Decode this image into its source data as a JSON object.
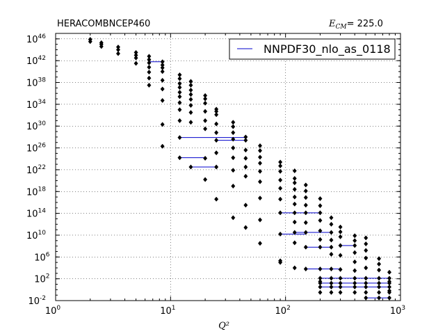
{
  "chart_data": {
    "type": "scatter",
    "title_left": "HERACOMBNCEP460",
    "title_right_label": "E_CM",
    "title_right_value": "= 225.0",
    "xlabel": "Q²",
    "ylabel": "",
    "x_scale": "log",
    "y_scale": "log",
    "xlim": [
      1,
      1000
    ],
    "ylim_exp": [
      -2,
      47
    ],
    "x_tick_labels": [
      {
        "value": 1,
        "base": "10",
        "exp": "0"
      },
      {
        "value": 10,
        "base": "10",
        "exp": "1"
      },
      {
        "value": 100,
        "base": "10",
        "exp": "2"
      },
      {
        "value": 1000,
        "base": "10",
        "exp": "3"
      }
    ],
    "y_tick_labels": [
      {
        "exp": -2,
        "base": "10",
        "label": "-2"
      },
      {
        "exp": 2,
        "base": "10",
        "label": "2"
      },
      {
        "exp": 6,
        "base": "10",
        "label": "6"
      },
      {
        "exp": 10,
        "base": "10",
        "label": "10"
      },
      {
        "exp": 14,
        "base": "10",
        "label": "14"
      },
      {
        "exp": 18,
        "base": "10",
        "label": "18"
      },
      {
        "exp": 22,
        "base": "10",
        "label": "22"
      },
      {
        "exp": 26,
        "base": "10",
        "label": "26"
      },
      {
        "exp": 30,
        "base": "10",
        "label": "30"
      },
      {
        "exp": 34,
        "base": "10",
        "label": "34"
      },
      {
        "exp": 38,
        "base": "10",
        "label": "38"
      },
      {
        "exp": 42,
        "base": "10",
        "label": "42"
      },
      {
        "exp": 46,
        "base": "10",
        "label": "46"
      }
    ],
    "grid": true,
    "legend_position": "top-right",
    "series": [
      {
        "name": "NNPDF30_nlo_as_0118",
        "color": "#0000cc",
        "lines": [
          {
            "x": [
              6.5,
              8.5
            ],
            "y_exp": 41.8
          },
          {
            "x": [
              12,
              45
            ],
            "y_exp": 27.9
          },
          {
            "x": [
              25,
              45
            ],
            "y_exp": 27.4
          },
          {
            "x": [
              12,
              20
            ],
            "y_exp": 24.2
          },
          {
            "x": [
              15,
              25
            ],
            "y_exp": 22.5
          },
          {
            "x": [
              90,
              200
            ],
            "y_exp": 14.1
          },
          {
            "x": [
              90,
              150
            ],
            "y_exp": 10.2
          },
          {
            "x": [
              120,
              250
            ],
            "y_exp": 10.5
          },
          {
            "x": [
              150,
              250
            ],
            "y_exp": 7.8
          },
          {
            "x": [
              300,
              400
            ],
            "y_exp": 8.1
          },
          {
            "x": [
              150,
              300
            ],
            "y_exp": 3.8
          },
          {
            "x": [
              200,
              800
            ],
            "y_exp": 2.1
          },
          {
            "x": [
              200,
              800
            ],
            "y_exp": 1.2
          },
          {
            "x": [
              200,
              800
            ],
            "y_exp": 0.5
          },
          {
            "x": [
              500,
              800
            ],
            "y_exp": -1.5
          }
        ]
      },
      {
        "name": "",
        "color": "#000000",
        "columns": [
          {
            "x": 2,
            "y_exp": [
              45.9,
              45.5
            ]
          },
          {
            "x": 2.5,
            "y_exp": [
              45.3,
              45.0,
              44.6
            ]
          },
          {
            "x": 3.5,
            "y_exp": [
              44.5,
              44.0,
              43.3
            ]
          },
          {
            "x": 5,
            "y_exp": [
              43.5,
              43.0,
              42.5,
              41.5
            ]
          },
          {
            "x": 6.5,
            "y_exp": [
              42.8,
              42.2,
              41.6,
              40.8,
              39.9,
              38.8,
              37.5
            ]
          },
          {
            "x": 8.5,
            "y_exp": [
              41.8,
              41.2,
              40.7,
              40.0,
              38.4,
              36.8,
              34.7,
              30.3,
              26.3
            ]
          },
          {
            "x": 12,
            "y_exp": [
              39.4,
              38.7,
              37.8,
              37.1,
              36.2,
              35.4,
              34.3,
              33.0,
              31.0,
              27.9,
              24.2
            ]
          },
          {
            "x": 15,
            "y_exp": [
              38.2,
              37.5,
              36.6,
              35.8,
              34.9,
              33.8,
              32.5,
              30.7,
              22.5
            ]
          },
          {
            "x": 20,
            "y_exp": [
              35.6,
              35.0,
              34.2,
              32.7,
              31.0,
              29.5,
              24.1,
              20.2
            ]
          },
          {
            "x": 25,
            "y_exp": [
              33.1,
              32.7,
              32.1,
              30.4,
              28.8,
              27.4,
              25.1,
              22.5,
              16.6
            ]
          },
          {
            "x": 35,
            "y_exp": [
              30.7,
              29.9,
              28.8,
              27.6,
              26.0,
              24.2,
              21.9,
              19.0,
              13.2
            ]
          },
          {
            "x": 45,
            "y_exp": [
              28.0,
              27.4,
              25.6,
              24.1,
              22.5,
              20.8,
              15.5,
              11.4
            ]
          },
          {
            "x": 60,
            "y_exp": [
              26.4,
              25.5,
              24.3,
              23.2,
              21.7,
              19.8,
              16.8,
              12.8,
              8.5
            ]
          },
          {
            "x": 90,
            "y_exp": [
              23.4,
              22.7,
              21.7,
              20.1,
              18.6,
              16.6,
              14.1,
              10.2,
              5.3,
              5.0
            ]
          },
          {
            "x": 120,
            "y_exp": [
              21.8,
              20.4,
              19.6,
              18.4,
              17.0,
              15.7,
              14.1,
              12.4,
              10.5,
              8.6,
              4.0
            ]
          },
          {
            "x": 150,
            "y_exp": [
              19.2,
              18.1,
              16.9,
              15.5,
              14.1,
              12.3,
              10.5,
              7.8,
              3.8
            ]
          },
          {
            "x": 200,
            "y_exp": [
              16.7,
              15.4,
              14.1,
              12.7,
              10.8,
              9.2,
              7.8,
              3.8,
              2.1,
              1.5,
              1.2,
              0.5,
              -0.5
            ]
          },
          {
            "x": 250,
            "y_exp": [
              13.2,
              12.0,
              10.5,
              9.1,
              7.8,
              6.5,
              3.8,
              2.1,
              1.2,
              0.5,
              -0.5
            ]
          },
          {
            "x": 300,
            "y_exp": [
              11.5,
              10.6,
              9.7,
              8.1,
              6.3,
              3.7,
              2.1,
              1.2,
              0.5,
              -0.5
            ]
          },
          {
            "x": 400,
            "y_exp": [
              9.9,
              9.0,
              8.1,
              6.8,
              5.1,
              3.5,
              2.1,
              1.2,
              0.5,
              -0.5
            ]
          },
          {
            "x": 500,
            "y_exp": [
              9.5,
              8.4,
              7.2,
              5.8,
              4.0,
              2.1,
              1.2,
              0.5,
              -0.5,
              -1.5
            ]
          },
          {
            "x": 650,
            "y_exp": [
              5.7,
              4.7,
              3.6,
              2.1,
              1.2,
              0.5,
              -0.5,
              -1.5
            ]
          },
          {
            "x": 800,
            "y_exp": [
              3.2,
              2.1,
              1.5,
              1.2,
              0.5,
              -0.2,
              -0.5,
              -1.5
            ]
          }
        ]
      }
    ]
  }
}
